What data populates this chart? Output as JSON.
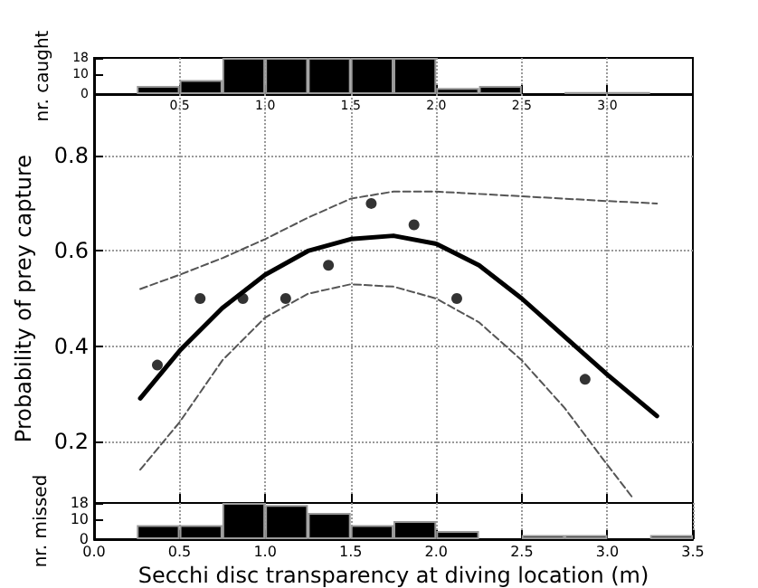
{
  "chart_data": [
    {
      "type": "histogram",
      "ylabel": "nr. caught",
      "bins": [
        0.25,
        0.5,
        0.75,
        1.0,
        1.25,
        1.5,
        1.75,
        2.0,
        2.25,
        2.5,
        2.75,
        3.0,
        3.25
      ],
      "values": [
        4,
        7,
        18,
        18,
        18,
        18,
        18,
        3,
        4,
        0,
        1,
        1
      ],
      "color": "#000000",
      "xlim": [
        0,
        3.5
      ],
      "xticks": [
        {
          "value": 0.5,
          "label": "0.5"
        },
        {
          "value": 1,
          "label": "1.0"
        },
        {
          "value": 1.5,
          "label": "1.5"
        },
        {
          "value": 2,
          "label": "2.0"
        },
        {
          "value": 2.5,
          "label": "2.5"
        },
        {
          "value": 3,
          "label": "3.0"
        }
      ],
      "ylim": [
        0,
        18
      ],
      "yticks": [
        0,
        10,
        18
      ],
      "grid": "x"
    },
    {
      "type": "line",
      "ylabel": "Probability of prey capture",
      "xlim": [
        0,
        3.5
      ],
      "xticks": [
        0.5,
        1,
        1.5,
        2,
        2.5,
        3
      ],
      "ylim": [
        0.07,
        0.93
      ],
      "yticks": [
        0.2,
        0.4,
        0.6,
        0.8
      ],
      "grid": true,
      "tick_labels": "y",
      "series": [
        {
          "type": "scatter",
          "marker": "circle",
          "color": "#000000",
          "x": [
            0.37,
            0.62,
            0.87,
            1.12,
            1.37,
            1.62,
            1.87,
            2.12,
            2.87
          ],
          "values": [
            0.36,
            0.5,
            0.5,
            0.5,
            0.57,
            0.7,
            0.655,
            0.5,
            0.33
          ]
        },
        {
          "type": "line",
          "line_style": "solid",
          "color": "#000000",
          "x": [
            0.27,
            0.5,
            0.75,
            1.0,
            1.25,
            1.5,
            1.75,
            2.0,
            2.25,
            2.5,
            2.75,
            3.0,
            3.29
          ],
          "values": [
            0.29,
            0.39,
            0.48,
            0.55,
            0.6,
            0.625,
            0.632,
            0.615,
            0.57,
            0.5,
            0.42,
            0.34,
            0.253
          ]
        },
        {
          "type": "line",
          "line_style": "dashed",
          "color": "#555555",
          "x": [
            0.27,
            0.5,
            0.75,
            1.0,
            1.25,
            1.5,
            1.75,
            2.0,
            2.5,
            3.0,
            3.29
          ],
          "values": [
            0.52,
            0.55,
            0.585,
            0.625,
            0.67,
            0.71,
            0.725,
            0.725,
            0.715,
            0.705,
            0.7
          ]
        },
        {
          "type": "line",
          "line_style": "dashed",
          "color": "#555555",
          "x": [
            0.27,
            0.5,
            0.75,
            1.0,
            1.25,
            1.5,
            1.75,
            2.0,
            2.25,
            2.5,
            2.75,
            3.0,
            3.15
          ],
          "values": [
            0.14,
            0.24,
            0.37,
            0.46,
            0.51,
            0.53,
            0.525,
            0.5,
            0.45,
            0.37,
            0.27,
            0.15,
            0.08
          ]
        }
      ]
    },
    {
      "type": "histogram",
      "ylabel": "nr. missed",
      "xlabel": "Secchi disc transparency at diving location (m)",
      "bins": [
        0.25,
        0.5,
        0.75,
        1.0,
        1.25,
        1.5,
        1.75,
        2.0,
        2.25,
        2.5,
        2.75,
        3.0,
        3.25,
        3.5
      ],
      "values": [
        7,
        7,
        18,
        17,
        13,
        7,
        9,
        4,
        0,
        2,
        2,
        0,
        2
      ],
      "color": "#000000",
      "xlim": [
        0,
        3.5
      ],
      "xticks": [
        {
          "value": 0,
          "label": "0.0"
        },
        {
          "value": 0.5,
          "label": "0.5"
        },
        {
          "value": 1,
          "label": "1.0"
        },
        {
          "value": 1.5,
          "label": "1.5"
        },
        {
          "value": 2,
          "label": "2.0"
        },
        {
          "value": 2.5,
          "label": "2.5"
        },
        {
          "value": 3,
          "label": "3.0"
        },
        {
          "value": 3.5,
          "label": "3.5"
        }
      ],
      "ylim": [
        0,
        18
      ],
      "yticks": [
        0,
        10,
        18
      ],
      "grid": "x"
    }
  ]
}
